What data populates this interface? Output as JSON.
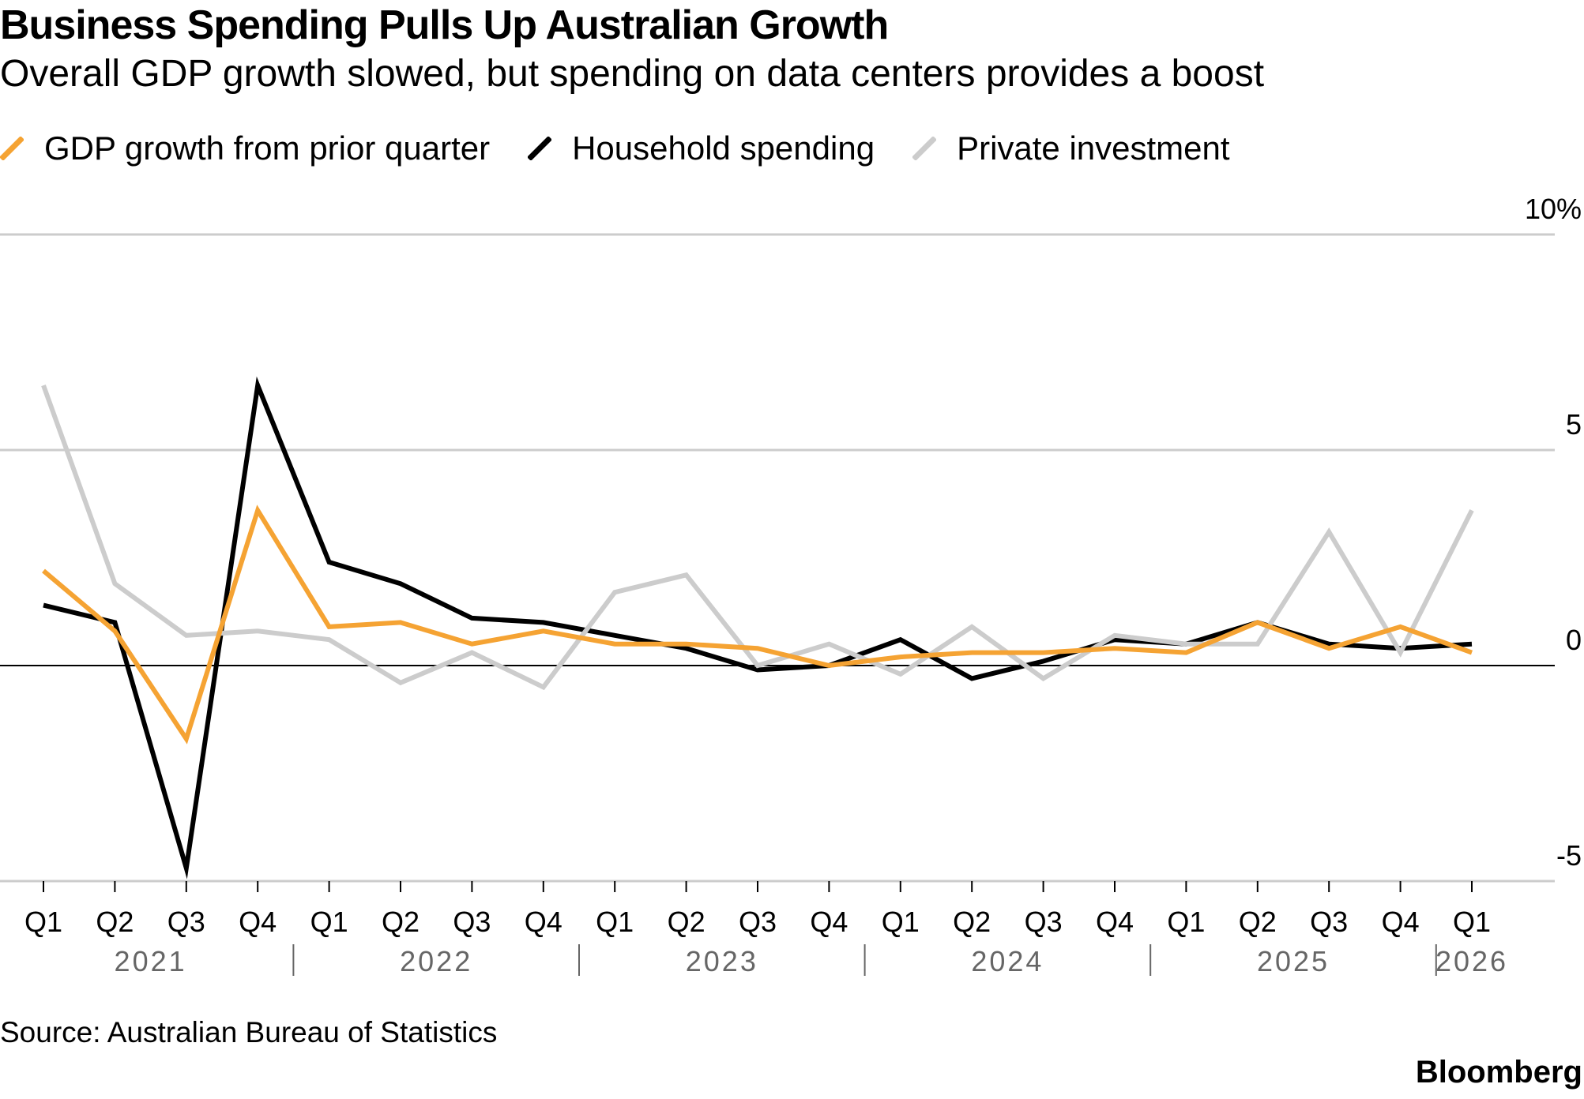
{
  "title": "Business Spending Pulls Up Australian Growth",
  "subtitle": "Overall GDP growth slowed, but spending on data centers provides a boost",
  "source": "Source: Australian Bureau of Statistics",
  "brand": "Bloomberg",
  "chart_data": {
    "type": "line",
    "categories": [
      "Q1",
      "Q2",
      "Q3",
      "Q4",
      "Q1",
      "Q2",
      "Q3",
      "Q4",
      "Q1",
      "Q2",
      "Q3",
      "Q4",
      "Q1",
      "Q2",
      "Q3",
      "Q4",
      "Q1",
      "Q2",
      "Q3",
      "Q4",
      "Q1"
    ],
    "years": [
      {
        "label": "2021",
        "start": 0,
        "end": 3
      },
      {
        "label": "2022",
        "start": 4,
        "end": 7
      },
      {
        "label": "2023",
        "start": 8,
        "end": 11
      },
      {
        "label": "2024",
        "start": 12,
        "end": 15
      },
      {
        "label": "2025",
        "start": 16,
        "end": 19
      },
      {
        "label": "2026",
        "start": 20,
        "end": 20
      }
    ],
    "series": [
      {
        "name": "Household spending",
        "color": "#000000",
        "values": [
          1.4,
          1.0,
          -4.7,
          6.5,
          2.4,
          1.9,
          1.1,
          1.0,
          0.7,
          0.4,
          -0.1,
          0.0,
          0.6,
          -0.3,
          0.1,
          0.6,
          0.5,
          1.0,
          0.5,
          0.4,
          0.5
        ]
      },
      {
        "name": "Private investment",
        "color": "#cccccc",
        "values": [
          6.5,
          1.9,
          0.7,
          0.8,
          0.6,
          -0.4,
          0.3,
          -0.5,
          1.7,
          2.1,
          0.0,
          0.5,
          -0.2,
          0.9,
          -0.3,
          0.7,
          0.5,
          0.5,
          3.1,
          0.3,
          3.6
        ]
      },
      {
        "name": "GDP growth from prior quarter",
        "color": "#f5a333",
        "values": [
          2.2,
          0.8,
          -1.7,
          3.6,
          0.9,
          1.0,
          0.5,
          0.8,
          0.5,
          0.5,
          0.4,
          0.0,
          0.2,
          0.3,
          0.3,
          0.4,
          0.3,
          1.0,
          0.4,
          0.9,
          0.3
        ]
      }
    ],
    "legend": [
      "GDP growth from prior quarter",
      "Household spending",
      "Private investment"
    ],
    "yticks": [
      {
        "value": 10,
        "label": "10%"
      },
      {
        "value": 5,
        "label": "5"
      },
      {
        "value": 0,
        "label": "0"
      },
      {
        "value": -5,
        "label": "-5"
      }
    ],
    "ylim": [
      -5,
      10
    ],
    "xlabel": "",
    "ylabel": ""
  }
}
